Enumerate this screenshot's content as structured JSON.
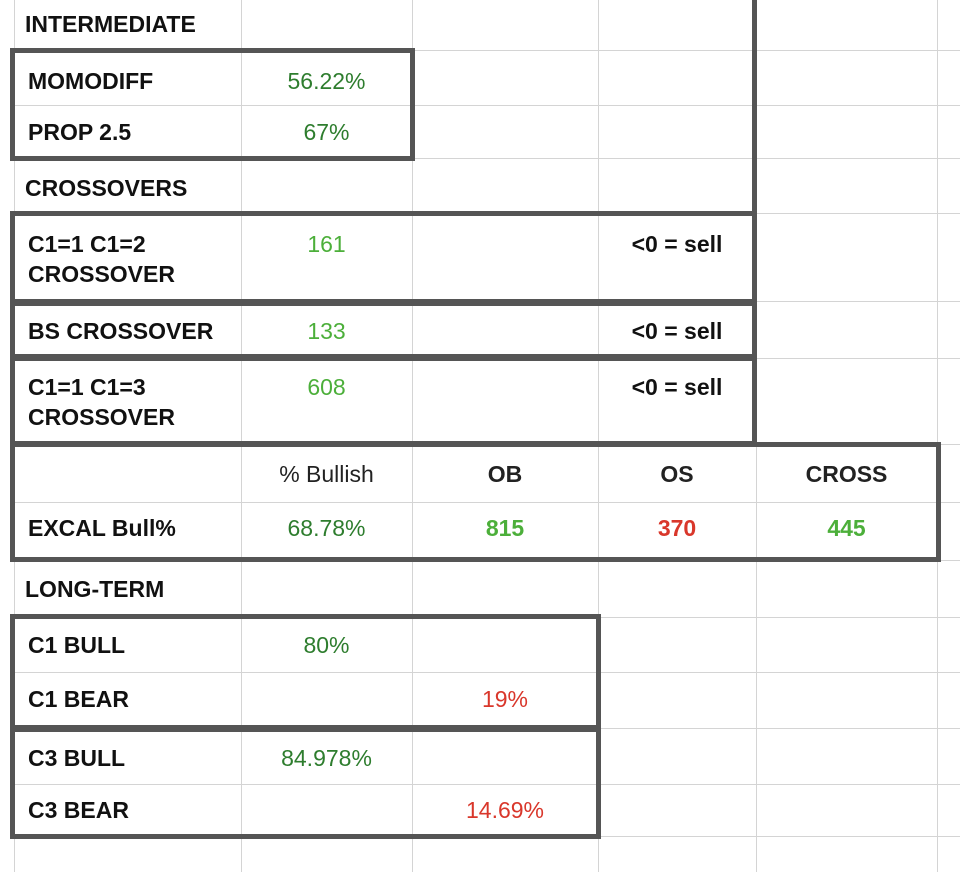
{
  "colors": {
    "dark_green": "#2e7d2e",
    "light_green": "#4caf3a",
    "red": "#d9372b",
    "border": "#555555",
    "grid": "#d4d4d4"
  },
  "intermediate": {
    "title": "INTERMEDIATE",
    "rows": [
      {
        "label": "MOMODIFF",
        "value": "56.22%"
      },
      {
        "label": "PROP 2.5",
        "value": "67%"
      }
    ]
  },
  "crossovers": {
    "title": "CROSSOVERS",
    "rows": [
      {
        "label_line1": "C1=1 C1=2",
        "label_line2": "CROSSOVER",
        "value": "161",
        "note": "<0 = sell"
      },
      {
        "label": "BS CROSSOVER",
        "value": "133",
        "note": "<0 = sell"
      },
      {
        "label_line1": "C1=1 C1=3",
        "label_line2": "CROSSOVER",
        "value": "608",
        "note": "<0 = sell"
      }
    ]
  },
  "excal": {
    "headers": [
      "% Bullish",
      "OB",
      "OS",
      "CROSS"
    ],
    "label": "EXCAL Bull%",
    "bullish": "68.78%",
    "ob": "815",
    "os": "370",
    "cross": "445"
  },
  "long_term": {
    "title": "LONG-TERM",
    "rows": [
      {
        "label": "C1 BULL",
        "bull": "80%",
        "bear": ""
      },
      {
        "label": "C1 BEAR",
        "bull": "",
        "bear": "19%"
      },
      {
        "label": "C3 BULL",
        "bull": "84.978%",
        "bear": ""
      },
      {
        "label": "C3 BEAR",
        "bull": "",
        "bear": "14.69%"
      }
    ]
  }
}
